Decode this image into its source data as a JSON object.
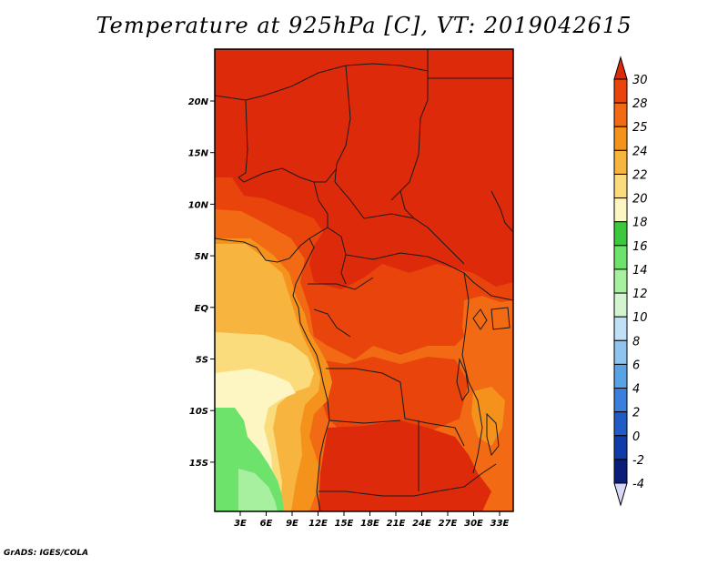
{
  "title": "Temperature at 925hPa [C], VT: 2019042615",
  "credit": "GrADS: IGES/COLA",
  "map": {
    "lon_ticks": [
      "3E",
      "6E",
      "9E",
      "12E",
      "15E",
      "18E",
      "21E",
      "24E",
      "27E",
      "30E",
      "33E"
    ],
    "lat_ticks": [
      "20N",
      "15N",
      "10N",
      "5N",
      "EQ",
      "5S",
      "10S",
      "15S"
    ],
    "fill_colors": {
      "gt30": "#dc2a0b",
      "c28_30": "#e8440c",
      "c25_28": "#f26a13",
      "c24_25": "#f5921c",
      "c22_24": "#f7b43f",
      "c20_22": "#fbdc7c",
      "c18_20": "#fdf5c2",
      "c14_16": "#6ee36b",
      "c12_14": "#a6f0a0"
    }
  },
  "colorbar": {
    "labels": [
      "30",
      "28",
      "25",
      "24",
      "22",
      "20",
      "18",
      "16",
      "14",
      "12",
      "10",
      "8",
      "6",
      "4",
      "2",
      "0",
      "-2",
      "-4"
    ],
    "colors": [
      "#dc2a0b",
      "#e8440c",
      "#f26a13",
      "#f5921c",
      "#f7b43f",
      "#fbdc7c",
      "#fdf5c2",
      "#3cc83c",
      "#6ee36b",
      "#a6f0a0",
      "#d2f5cf",
      "#c0e0f5",
      "#8ec4ee",
      "#5aa2e6",
      "#3a7fdc",
      "#1f5cc6",
      "#0f3ca8",
      "#0a1d78",
      "#081055"
    ],
    "top_color": "#dc2a0b",
    "bottom_color": "#d8d8f4"
  }
}
